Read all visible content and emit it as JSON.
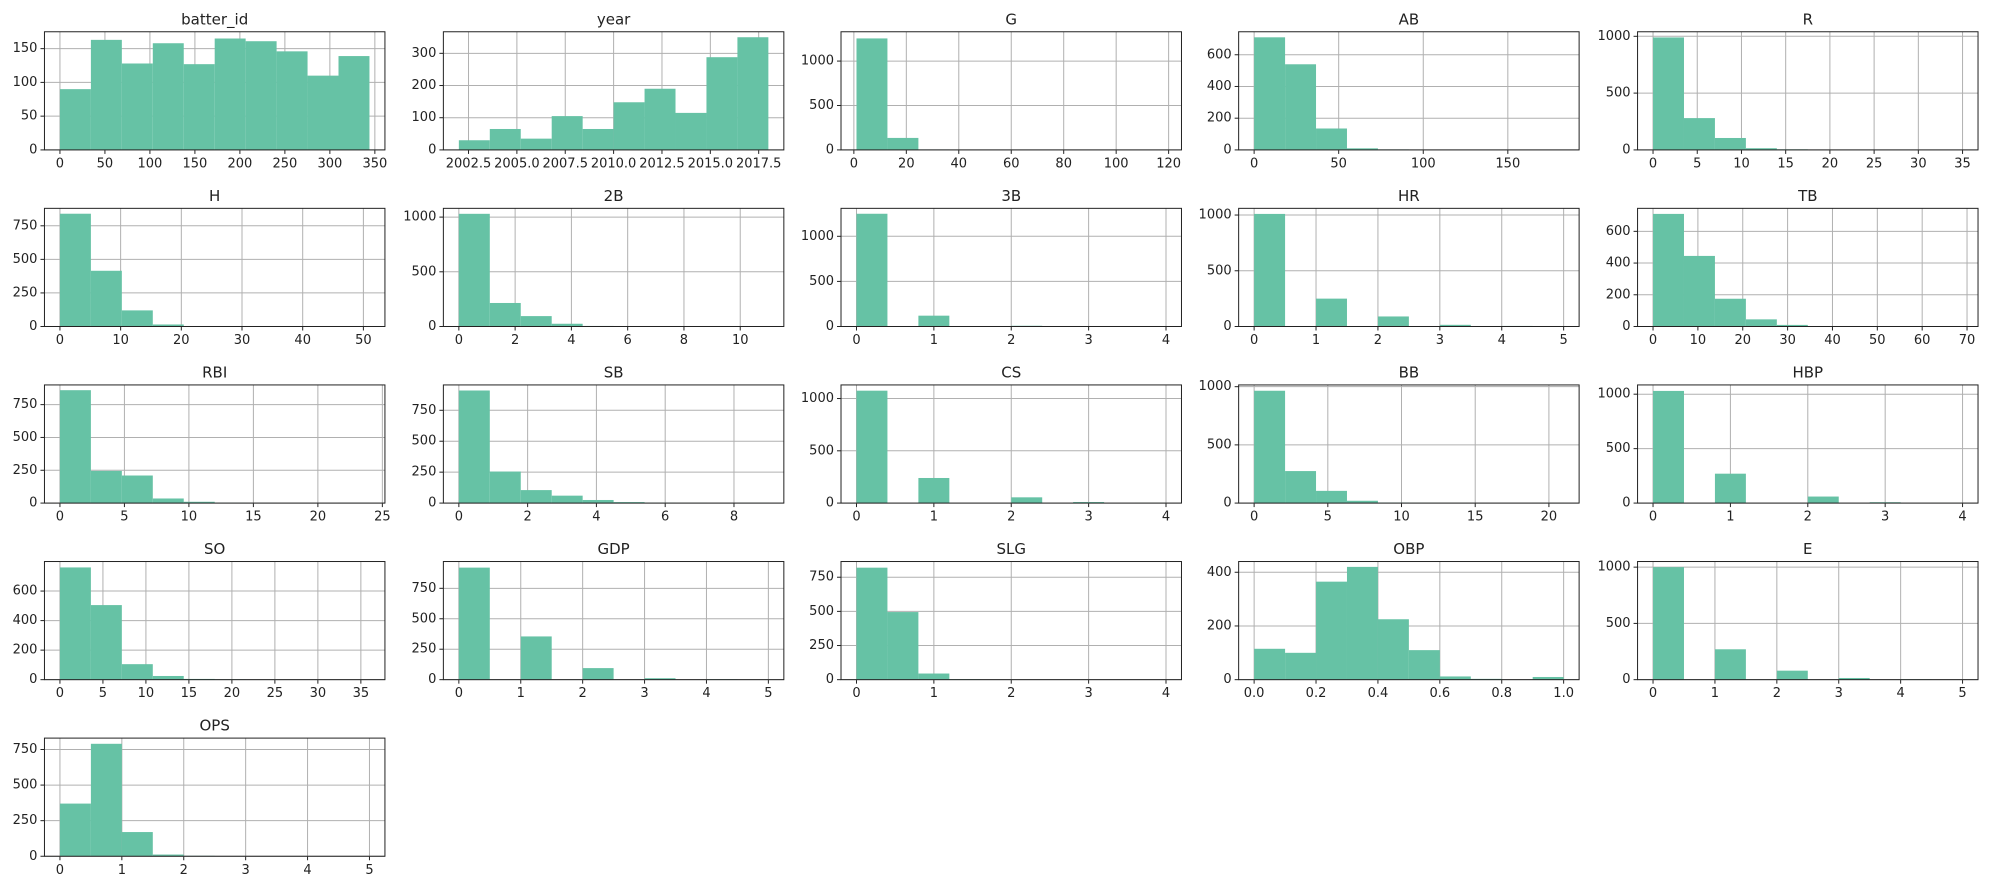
{
  "chart_data": [
    {
      "type": "histogram",
      "title": "batter_id",
      "color": "#66c2a5",
      "grid": true,
      "bins": [
        0,
        34.4,
        68.8,
        103.2,
        137.6,
        172,
        206.4,
        240.8,
        275.2,
        309.6,
        344
      ],
      "values": [
        90,
        163,
        128,
        158,
        127,
        165,
        161,
        146,
        110,
        139
      ],
      "xlim": [
        -17.2,
        361.2
      ],
      "xticks": [
        0,
        50,
        100,
        150,
        200,
        250,
        300,
        350
      ],
      "ylim": [
        0,
        175
      ],
      "yticks": [
        0,
        50,
        100,
        150
      ]
    },
    {
      "type": "histogram",
      "title": "year",
      "color": "#66c2a5",
      "grid": true,
      "bins": [
        2002,
        2003.6,
        2005.2,
        2006.8,
        2008.4,
        2010,
        2011.6,
        2013.2,
        2014.8,
        2016.4,
        2018
      ],
      "values": [
        30,
        65,
        35,
        105,
        65,
        148,
        190,
        115,
        288,
        350
      ],
      "xlim": [
        2001.2,
        2018.8
      ],
      "xticks": [
        2002.5,
        {
          "value": 2005,
          "label": "2005.0"
        },
        2007.5,
        {
          "value": 2010,
          "label": "2010.0"
        },
        2012.5,
        {
          "value": 2015,
          "label": "2015.0"
        },
        2017.5
      ],
      "ylim": [
        0,
        367
      ],
      "yticks": [
        0,
        100,
        200,
        300
      ]
    },
    {
      "type": "histogram",
      "title": "G",
      "color": "#66c2a5",
      "grid": true,
      "bins": [
        1,
        12.8,
        24.6,
        36.4,
        48.2,
        60,
        71.8,
        83.6,
        95.4,
        107.2,
        119
      ],
      "values": [
        1255,
        135,
        5,
        2,
        1,
        1,
        0,
        0,
        0,
        1
      ],
      "xlim": [
        -4.9,
        124.9
      ],
      "xticks": [
        0,
        20,
        40,
        60,
        80,
        100,
        120
      ],
      "ylim": [
        0,
        1330
      ],
      "yticks": [
        0,
        500,
        1000
      ]
    },
    {
      "type": "histogram",
      "title": "AB",
      "color": "#66c2a5",
      "grid": true,
      "bins": [
        0,
        18.3,
        36.6,
        54.9,
        73.2,
        91.5,
        109.8,
        128.1,
        146.4,
        164.7,
        183
      ],
      "values": [
        710,
        540,
        135,
        10,
        3,
        1,
        0,
        0,
        0,
        1
      ],
      "xlim": [
        -9.15,
        192.15
      ],
      "xticks": [
        0,
        50,
        100,
        150
      ],
      "ylim": [
        0,
        745
      ],
      "yticks": [
        0,
        200,
        400,
        600
      ]
    },
    {
      "type": "histogram",
      "title": "R",
      "color": "#66c2a5",
      "grid": true,
      "bins": [
        0,
        3.5,
        7,
        10.5,
        14,
        17.5,
        21,
        24.5,
        28,
        31.5,
        35
      ],
      "values": [
        990,
        280,
        105,
        15,
        5,
        2,
        1,
        0,
        0,
        1
      ],
      "xlim": [
        -1.75,
        36.75
      ],
      "xticks": [
        0,
        5,
        10,
        15,
        20,
        25,
        30,
        35
      ],
      "ylim": [
        0,
        1040
      ],
      "yticks": [
        0,
        500,
        1000
      ]
    },
    {
      "type": "histogram",
      "title": "H",
      "color": "#66c2a5",
      "grid": true,
      "bins": [
        0,
        5.1,
        10.2,
        15.3,
        20.4,
        25.5,
        30.6,
        35.7,
        40.8,
        45.9,
        51
      ],
      "values": [
        840,
        415,
        120,
        15,
        3,
        1,
        0,
        0,
        0,
        1
      ],
      "xlim": [
        -2.55,
        53.55
      ],
      "xticks": [
        0,
        10,
        20,
        30,
        40,
        50
      ],
      "ylim": [
        0,
        880
      ],
      "yticks": [
        0,
        250,
        500,
        750
      ]
    },
    {
      "type": "histogram",
      "title": "2B",
      "color": "#66c2a5",
      "grid": true,
      "bins": [
        0,
        1.1,
        2.2,
        3.3,
        4.4,
        5.5,
        6.6,
        7.7,
        8.8,
        9.9,
        11
      ],
      "values": [
        1030,
        215,
        95,
        25,
        5,
        2,
        1,
        0,
        0,
        1
      ],
      "xlim": [
        -0.55,
        11.55
      ],
      "xticks": [
        0,
        2,
        4,
        6,
        8,
        10
      ],
      "ylim": [
        0,
        1080
      ],
      "yticks": [
        0,
        500,
        1000
      ]
    },
    {
      "type": "histogram",
      "title": "3B",
      "color": "#66c2a5",
      "grid": true,
      "bins": [
        0,
        0.4,
        0.8,
        1.2,
        1.6,
        2,
        2.4,
        2.8,
        3.2,
        3.6,
        4
      ],
      "values": [
        1250,
        0,
        120,
        0,
        0,
        8,
        0,
        2,
        0,
        1
      ],
      "xlim": [
        -0.2,
        4.2
      ],
      "xticks": [
        0,
        1,
        2,
        3,
        4
      ],
      "ylim": [
        0,
        1310
      ],
      "yticks": [
        0,
        500,
        1000
      ]
    },
    {
      "type": "histogram",
      "title": "HR",
      "color": "#66c2a5",
      "grid": true,
      "bins": [
        0,
        0.5,
        1,
        1.5,
        2,
        2.5,
        3,
        3.5,
        4,
        4.5,
        5
      ],
      "values": [
        1010,
        0,
        250,
        0,
        90,
        0,
        15,
        0,
        5,
        2
      ],
      "xlim": [
        -0.25,
        5.25
      ],
      "xticks": [
        0,
        1,
        2,
        3,
        4,
        5
      ],
      "ylim": [
        0,
        1060
      ],
      "yticks": [
        0,
        500,
        1000
      ]
    },
    {
      "type": "histogram",
      "title": "TB",
      "color": "#66c2a5",
      "grid": true,
      "bins": [
        0,
        6.9,
        13.8,
        20.7,
        27.6,
        34.5,
        41.4,
        48.3,
        55.2,
        62.1,
        69
      ],
      "values": [
        710,
        445,
        175,
        45,
        10,
        3,
        1,
        0,
        0,
        1
      ],
      "xlim": [
        -3.45,
        72.45
      ],
      "xticks": [
        0,
        10,
        20,
        30,
        40,
        50,
        60,
        70
      ],
      "ylim": [
        0,
        745
      ],
      "yticks": [
        0,
        200,
        400,
        600
      ]
    },
    {
      "type": "histogram",
      "title": "RBI",
      "color": "#66c2a5",
      "grid": true,
      "bins": [
        0,
        2.4,
        4.8,
        7.2,
        9.6,
        12,
        14.4,
        16.8,
        19.2,
        21.6,
        24
      ],
      "values": [
        860,
        245,
        210,
        35,
        10,
        2,
        1,
        0,
        0,
        1
      ],
      "xlim": [
        -1.2,
        25.2
      ],
      "xticks": [
        0,
        5,
        10,
        15,
        20,
        25
      ],
      "ylim": [
        0,
        900
      ],
      "yticks": [
        0,
        250,
        500,
        750
      ]
    },
    {
      "type": "histogram",
      "title": "SB",
      "color": "#66c2a5",
      "grid": true,
      "bins": [
        0,
        0.9,
        1.8,
        2.7,
        3.6,
        4.5,
        5.4,
        6.3,
        7.2,
        8.1,
        9
      ],
      "values": [
        910,
        255,
        105,
        60,
        25,
        8,
        3,
        1,
        0,
        1
      ],
      "xlim": [
        -0.45,
        9.45
      ],
      "xticks": [
        0,
        2,
        4,
        6,
        8
      ],
      "ylim": [
        0,
        955
      ],
      "yticks": [
        0,
        250,
        500,
        750
      ]
    },
    {
      "type": "histogram",
      "title": "CS",
      "color": "#66c2a5",
      "grid": true,
      "bins": [
        0,
        0.4,
        0.8,
        1.2,
        1.6,
        2,
        2.4,
        2.8,
        3.2,
        3.6,
        4
      ],
      "values": [
        1075,
        0,
        240,
        0,
        0,
        55,
        0,
        10,
        0,
        2
      ],
      "xlim": [
        -0.2,
        4.2
      ],
      "xticks": [
        0,
        1,
        2,
        3,
        4
      ],
      "ylim": [
        0,
        1130
      ],
      "yticks": [
        0,
        500,
        1000
      ]
    },
    {
      "type": "histogram",
      "title": "BB",
      "color": "#66c2a5",
      "grid": true,
      "bins": [
        0,
        2.1,
        4.2,
        6.3,
        8.4,
        10.5,
        12.6,
        14.7,
        16.8,
        18.9,
        21
      ],
      "values": [
        965,
        275,
        105,
        20,
        5,
        2,
        1,
        0,
        0,
        1
      ],
      "xlim": [
        -1.05,
        22.05
      ],
      "xticks": [
        0,
        5,
        10,
        15,
        20
      ],
      "ylim": [
        0,
        1015
      ],
      "yticks": [
        0,
        500,
        1000
      ]
    },
    {
      "type": "histogram",
      "title": "HBP",
      "color": "#66c2a5",
      "grid": true,
      "bins": [
        0,
        0.4,
        0.8,
        1.2,
        1.6,
        2,
        2.4,
        2.8,
        3.2,
        3.6,
        4
      ],
      "values": [
        1030,
        0,
        270,
        0,
        0,
        60,
        0,
        8,
        0,
        1
      ],
      "xlim": [
        -0.2,
        4.2
      ],
      "xticks": [
        0,
        1,
        2,
        3,
        4
      ],
      "ylim": [
        0,
        1085
      ],
      "yticks": [
        0,
        500,
        1000
      ]
    },
    {
      "type": "histogram",
      "title": "SO",
      "color": "#66c2a5",
      "grid": true,
      "bins": [
        0,
        3.6,
        7.2,
        10.8,
        14.4,
        18,
        21.6,
        25.2,
        28.8,
        32.4,
        36
      ],
      "values": [
        760,
        505,
        105,
        25,
        5,
        2,
        1,
        0,
        0,
        1
      ],
      "xlim": [
        -1.8,
        37.8
      ],
      "xticks": [
        0,
        5,
        10,
        15,
        20,
        25,
        30,
        35
      ],
      "ylim": [
        0,
        800
      ],
      "yticks": [
        0,
        200,
        400,
        600
      ]
    },
    {
      "type": "histogram",
      "title": "GDP",
      "color": "#66c2a5",
      "grid": true,
      "bins": [
        0,
        0.5,
        1,
        1.5,
        2,
        2.5,
        3,
        3.5,
        4,
        4.5,
        5
      ],
      "values": [
        920,
        0,
        355,
        0,
        95,
        0,
        12,
        0,
        3,
        1
      ],
      "xlim": [
        -0.25,
        5.25
      ],
      "xticks": [
        0,
        1,
        2,
        3,
        4,
        5
      ],
      "ylim": [
        0,
        970
      ],
      "yticks": [
        0,
        250,
        500,
        750
      ]
    },
    {
      "type": "histogram",
      "title": "SLG",
      "color": "#66c2a5",
      "grid": true,
      "bins": [
        0,
        0.4,
        0.8,
        1.2,
        1.6,
        2,
        2.4,
        2.8,
        3.2,
        3.6,
        4
      ],
      "values": [
        820,
        495,
        45,
        3,
        1,
        0,
        0,
        0,
        0,
        1
      ],
      "xlim": [
        -0.2,
        4.2
      ],
      "xticks": [
        0,
        1,
        2,
        3,
        4
      ],
      "ylim": [
        0,
        865
      ],
      "yticks": [
        0,
        250,
        500,
        750
      ]
    },
    {
      "type": "histogram",
      "title": "OBP",
      "color": "#66c2a5",
      "grid": true,
      "bins": [
        0,
        0.1,
        0.2,
        0.3,
        0.4,
        0.5,
        0.6,
        0.7,
        0.8,
        0.9,
        1
      ],
      "values": [
        115,
        100,
        365,
        420,
        225,
        110,
        12,
        3,
        0,
        10
      ],
      "xlim": [
        -0.05,
        1.05
      ],
      "xticks": [
        {
          "value": 0,
          "label": "0.0"
        },
        0.2,
        0.4,
        0.6,
        0.8,
        {
          "value": 1,
          "label": "1.0"
        }
      ],
      "ylim": [
        0,
        440
      ],
      "yticks": [
        0,
        200,
        400
      ]
    },
    {
      "type": "histogram",
      "title": "E",
      "color": "#66c2a5",
      "grid": true,
      "bins": [
        0,
        0.5,
        1,
        1.5,
        2,
        2.5,
        3,
        3.5,
        4,
        4.5,
        5
      ],
      "values": [
        1000,
        0,
        270,
        0,
        80,
        0,
        15,
        0,
        3,
        1
      ],
      "xlim": [
        -0.25,
        5.25
      ],
      "xticks": [
        0,
        1,
        2,
        3,
        4,
        5
      ],
      "ylim": [
        0,
        1050
      ],
      "yticks": [
        0,
        500,
        1000
      ]
    },
    {
      "type": "histogram",
      "title": "OPS",
      "color": "#66c2a5",
      "grid": true,
      "bins": [
        0,
        0.5,
        1,
        1.5,
        2,
        2.5,
        3,
        3.5,
        4,
        4.5,
        5
      ],
      "values": [
        370,
        790,
        170,
        12,
        3,
        1,
        0,
        0,
        0,
        1
      ],
      "xlim": [
        -0.25,
        5.25
      ],
      "xticks": [
        0,
        1,
        2,
        3,
        4,
        5
      ],
      "ylim": [
        0,
        830
      ],
      "yticks": [
        0,
        250,
        500,
        750
      ]
    }
  ]
}
